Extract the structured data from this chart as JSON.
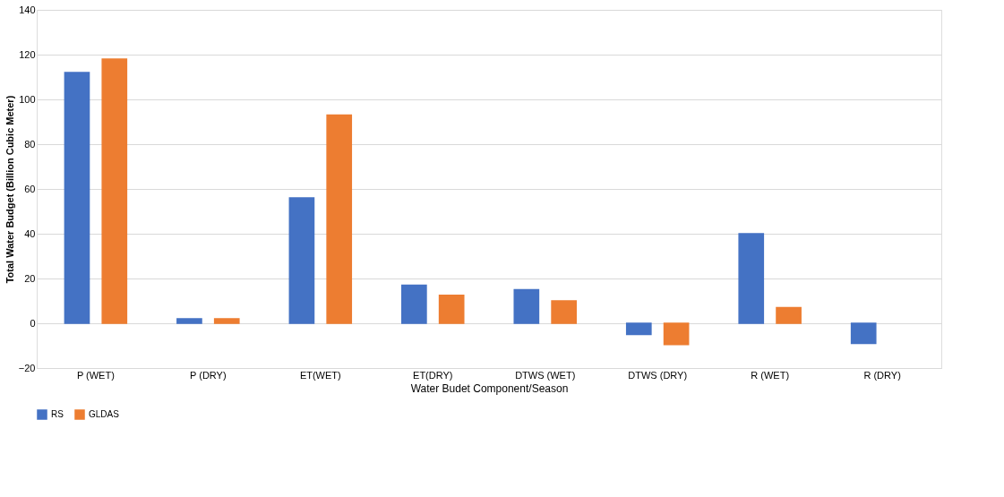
{
  "chart_data": {
    "type": "bar",
    "xlabel": "Water Budet Component/Season",
    "ylabel": "Total Water Budget (Billion Cubic Meter)",
    "categories": [
      "P (WET)",
      "P (DRY)",
      "ET(WET)",
      "ET(DRY)",
      "DTWS (WET)",
      "DTWS (DRY)",
      "R (WET)",
      "R (DRY)"
    ],
    "series": [
      {
        "name": "RS",
        "color": "#4472c4",
        "values": [
          112,
          2,
          56,
          17,
          15,
          -5,
          40,
          -9
        ]
      },
      {
        "name": "GLDAS",
        "color": "#ed7d31",
        "values": [
          118,
          2,
          93,
          12.5,
          10,
          -9.5,
          7,
          null
        ]
      }
    ],
    "ylim": [
      -20,
      140
    ],
    "yticks": [
      -20,
      0,
      20,
      40,
      60,
      80,
      100,
      120,
      140
    ],
    "grid": "y",
    "legend": "bottom"
  }
}
